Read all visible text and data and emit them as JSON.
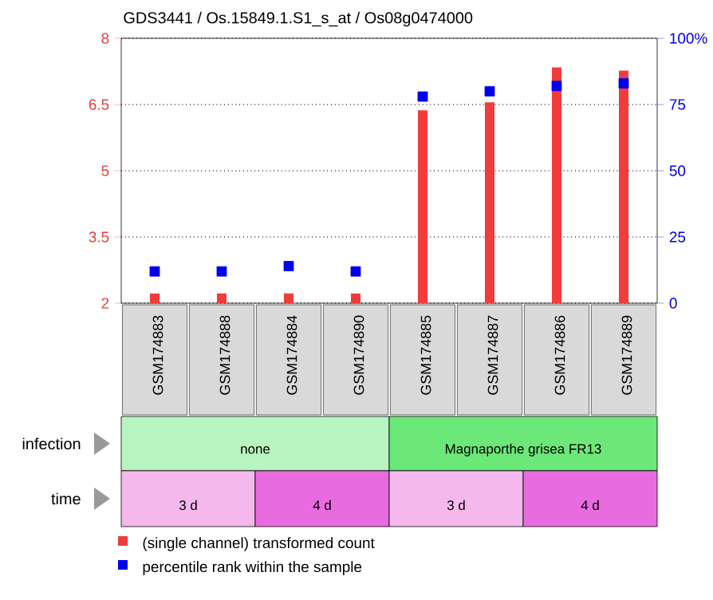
{
  "chart_data": {
    "type": "bar",
    "title": "GDS3441 / Os.15849.1.S1_s_at / Os08g0474000",
    "categories": [
      "GSM174883",
      "GSM174888",
      "GSM174884",
      "GSM174890",
      "GSM174885",
      "GSM174887",
      "GSM174886",
      "GSM174889"
    ],
    "series": [
      {
        "name": "(single channel) transformed count",
        "color": "#f03c3c",
        "values": [
          2.22,
          2.22,
          2.22,
          2.22,
          6.37,
          6.55,
          7.34,
          7.27
        ]
      },
      {
        "name": "percentile rank within the sample",
        "color": "#0000ee",
        "type": "scatter",
        "axis": "y2",
        "marker": "square",
        "values": [
          12,
          12,
          14,
          12,
          78,
          80,
          82,
          83
        ]
      }
    ],
    "ylim": [
      2,
      8
    ],
    "yticks": [
      2,
      3.5,
      5,
      6.5,
      8
    ],
    "y2lim": [
      0,
      100
    ],
    "y2ticks": [
      0,
      25,
      50,
      75,
      {
        "value": 100,
        "label": "100%"
      }
    ],
    "grid": "y",
    "legend": "bottom",
    "annotations": [
      "infection",
      "none",
      "Magnaporthe grisea FR13",
      "time",
      "3 d",
      "4 d",
      "3 d",
      "4 d"
    ]
  }
}
